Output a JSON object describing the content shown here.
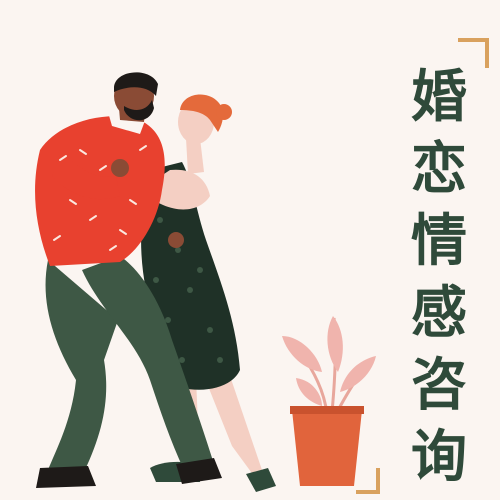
{
  "title": {
    "chars": [
      "婚",
      "恋",
      "情",
      "感",
      "咨",
      "询"
    ]
  },
  "colors": {
    "background": "#fbf5f1",
    "title": "#2f4a3a",
    "bracket": "#d9a15e",
    "sweater": "#e8412f",
    "dress": "#1f3127",
    "trousers": "#3e5845",
    "skin": "#f4cfc3",
    "hair_man": "#1e1a18",
    "hair_woman": "#e46a3b",
    "pot": "#e1643c",
    "leaf": "#f0b4ad"
  },
  "icons": [
    "corner-bracket-top-right",
    "corner-bracket-bottom-right",
    "potted-plant-icon"
  ]
}
